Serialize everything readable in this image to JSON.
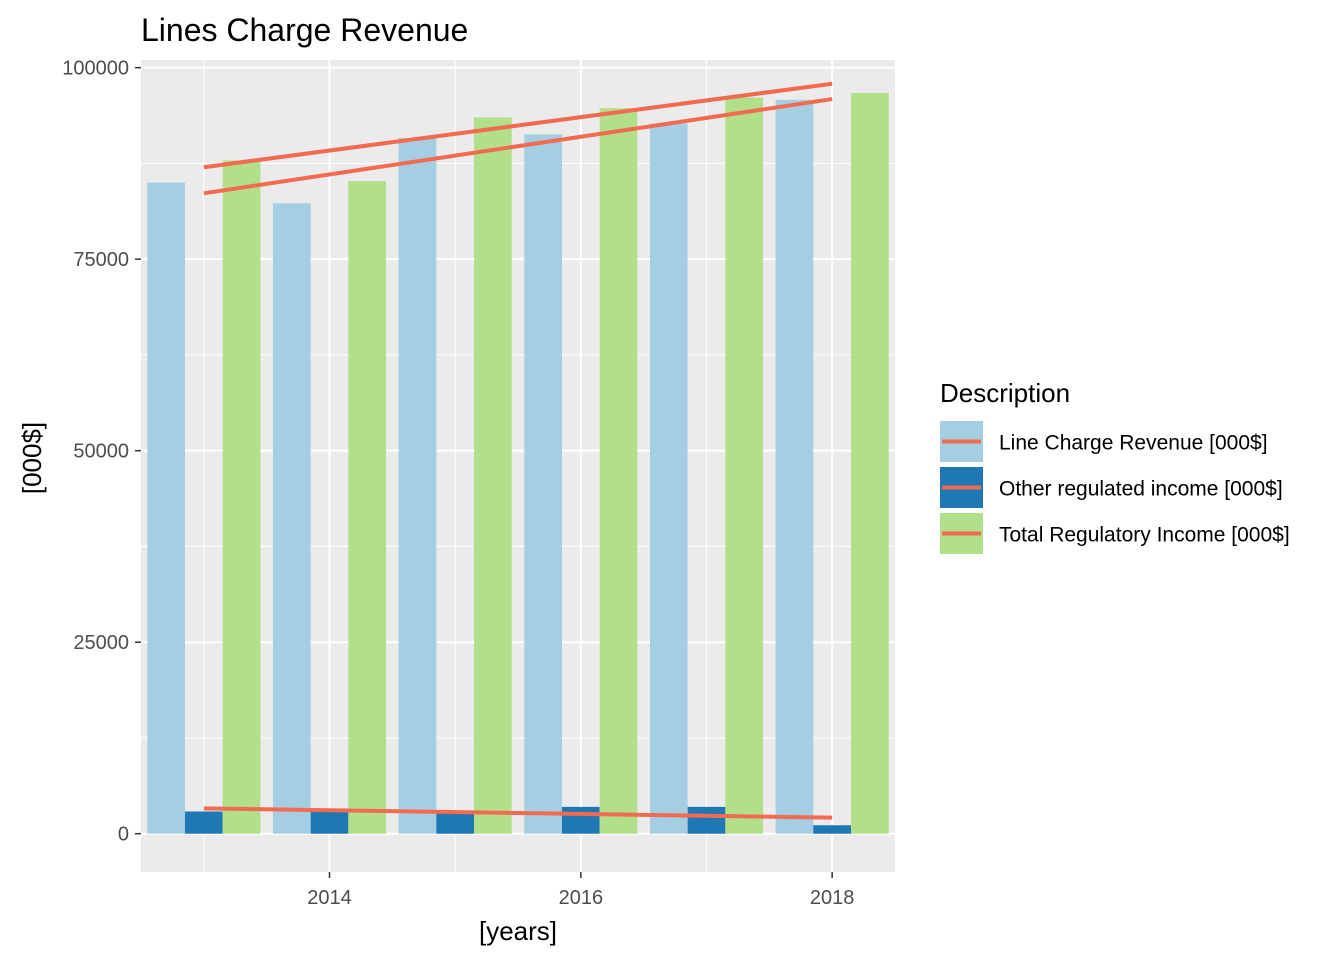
{
  "chart_data": {
    "type": "bar",
    "title": "Lines Charge Revenue",
    "xlabel": "[years]",
    "ylabel": "[000$]",
    "xlim": [
      2012.5,
      2018.5
    ],
    "ylim": [
      -5000,
      101000
    ],
    "x_ticks": [
      "2014",
      "2016",
      "2018"
    ],
    "y_ticks": [
      "0",
      "25000",
      "50000",
      "75000",
      "100000"
    ],
    "grid": true,
    "legend_title": "Description",
    "legend_position": "right",
    "years": [
      2013,
      2014,
      2015,
      2016,
      2017,
      2018
    ],
    "series": [
      {
        "name": "Line Charge Revenue [000$]",
        "color": "#a6cee3",
        "values": [
          85000,
          82300,
          90800,
          91300,
          92700,
          95800
        ],
        "trend": [
          87000,
          97900
        ]
      },
      {
        "name": "Other regulated income [000$]",
        "color": "#1f78b4",
        "values": [
          2900,
          2900,
          2700,
          3500,
          3500,
          1100
        ],
        "trend": [
          3300,
          2100
        ]
      },
      {
        "name": "Total Regulatory Income [000$]",
        "color": "#b2df8a",
        "values": [
          87900,
          85200,
          93500,
          94700,
          96100,
          96700
        ],
        "trend": [
          83600,
          95900
        ]
      }
    ],
    "trend_color": "#f26a4f"
  }
}
